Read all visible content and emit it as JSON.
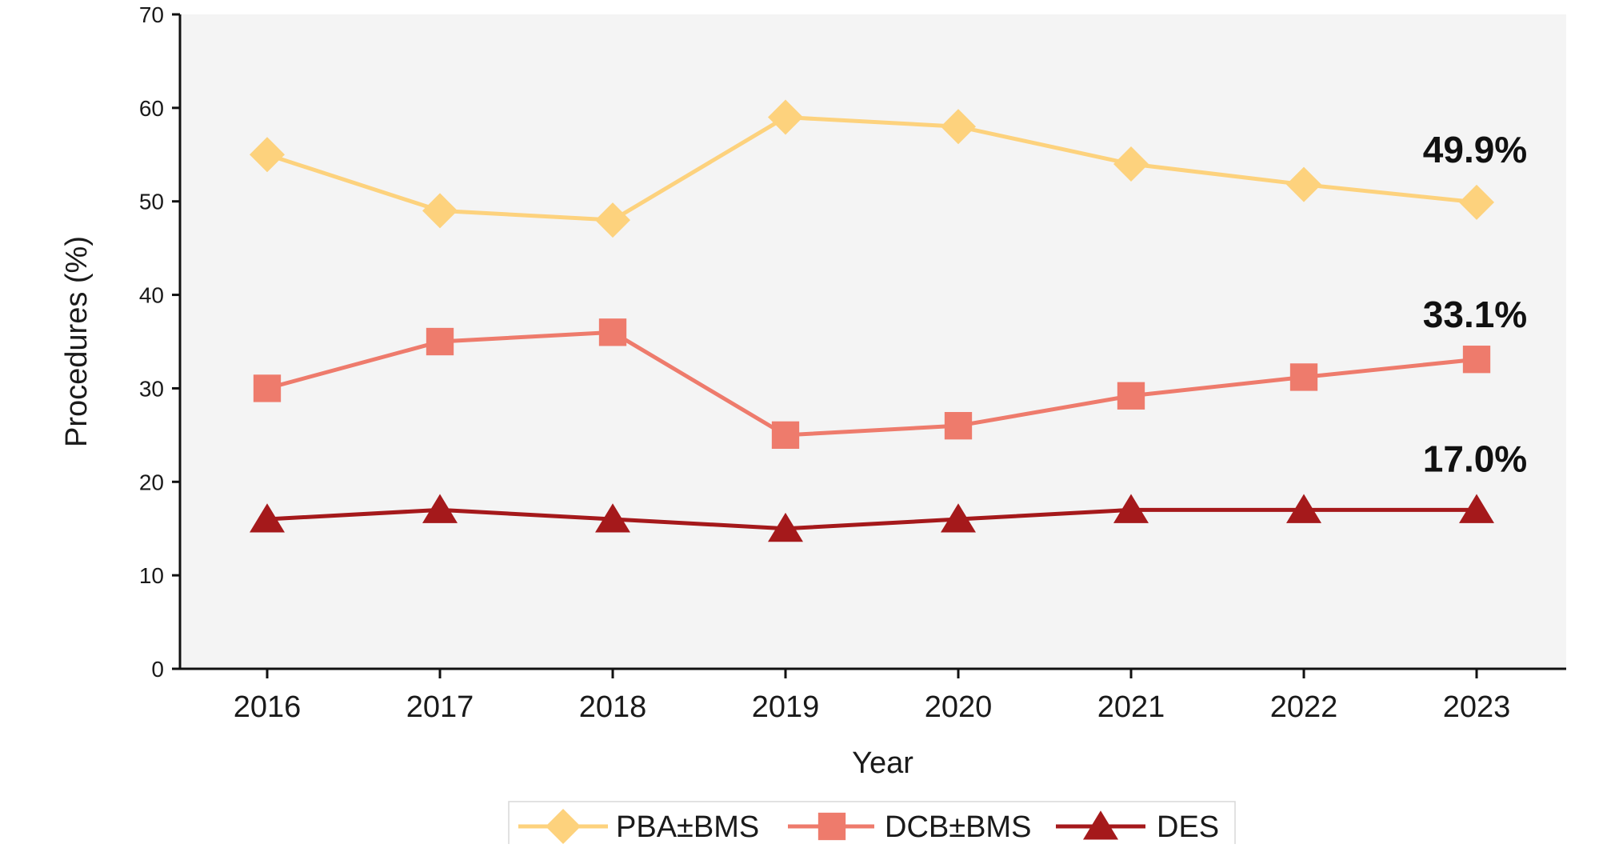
{
  "chart_data": {
    "type": "line",
    "title": "",
    "xlabel": "Year",
    "ylabel": "Procedures (%)",
    "ylim": [
      0,
      70
    ],
    "yticks": [
      "0",
      "10",
      "20",
      "30",
      "40",
      "50",
      "60",
      "70"
    ],
    "categories": [
      "2016",
      "2017",
      "2018",
      "2019",
      "2020",
      "2021",
      "2022",
      "2023"
    ],
    "grid": false,
    "legend_position": "bottom",
    "series": [
      {
        "name": "PBA±BMS",
        "marker": "diamond",
        "color": "#FDD27D",
        "values": [
          55,
          49,
          48,
          59,
          58,
          54,
          51.8,
          49.9
        ],
        "end_label": "49.9%"
      },
      {
        "name": "DCB±BMS",
        "marker": "square",
        "color": "#EE7B6C",
        "values": [
          30,
          35,
          36,
          25,
          26,
          29.2,
          31.2,
          33.1
        ],
        "end_label": "33.1%"
      },
      {
        "name": "DES",
        "marker": "triangle",
        "color": "#A5191B",
        "values": [
          16,
          17,
          16,
          15,
          16,
          17,
          17,
          17.0
        ],
        "end_label": "17.0%"
      }
    ],
    "plot_background": "#F4F4F4"
  }
}
